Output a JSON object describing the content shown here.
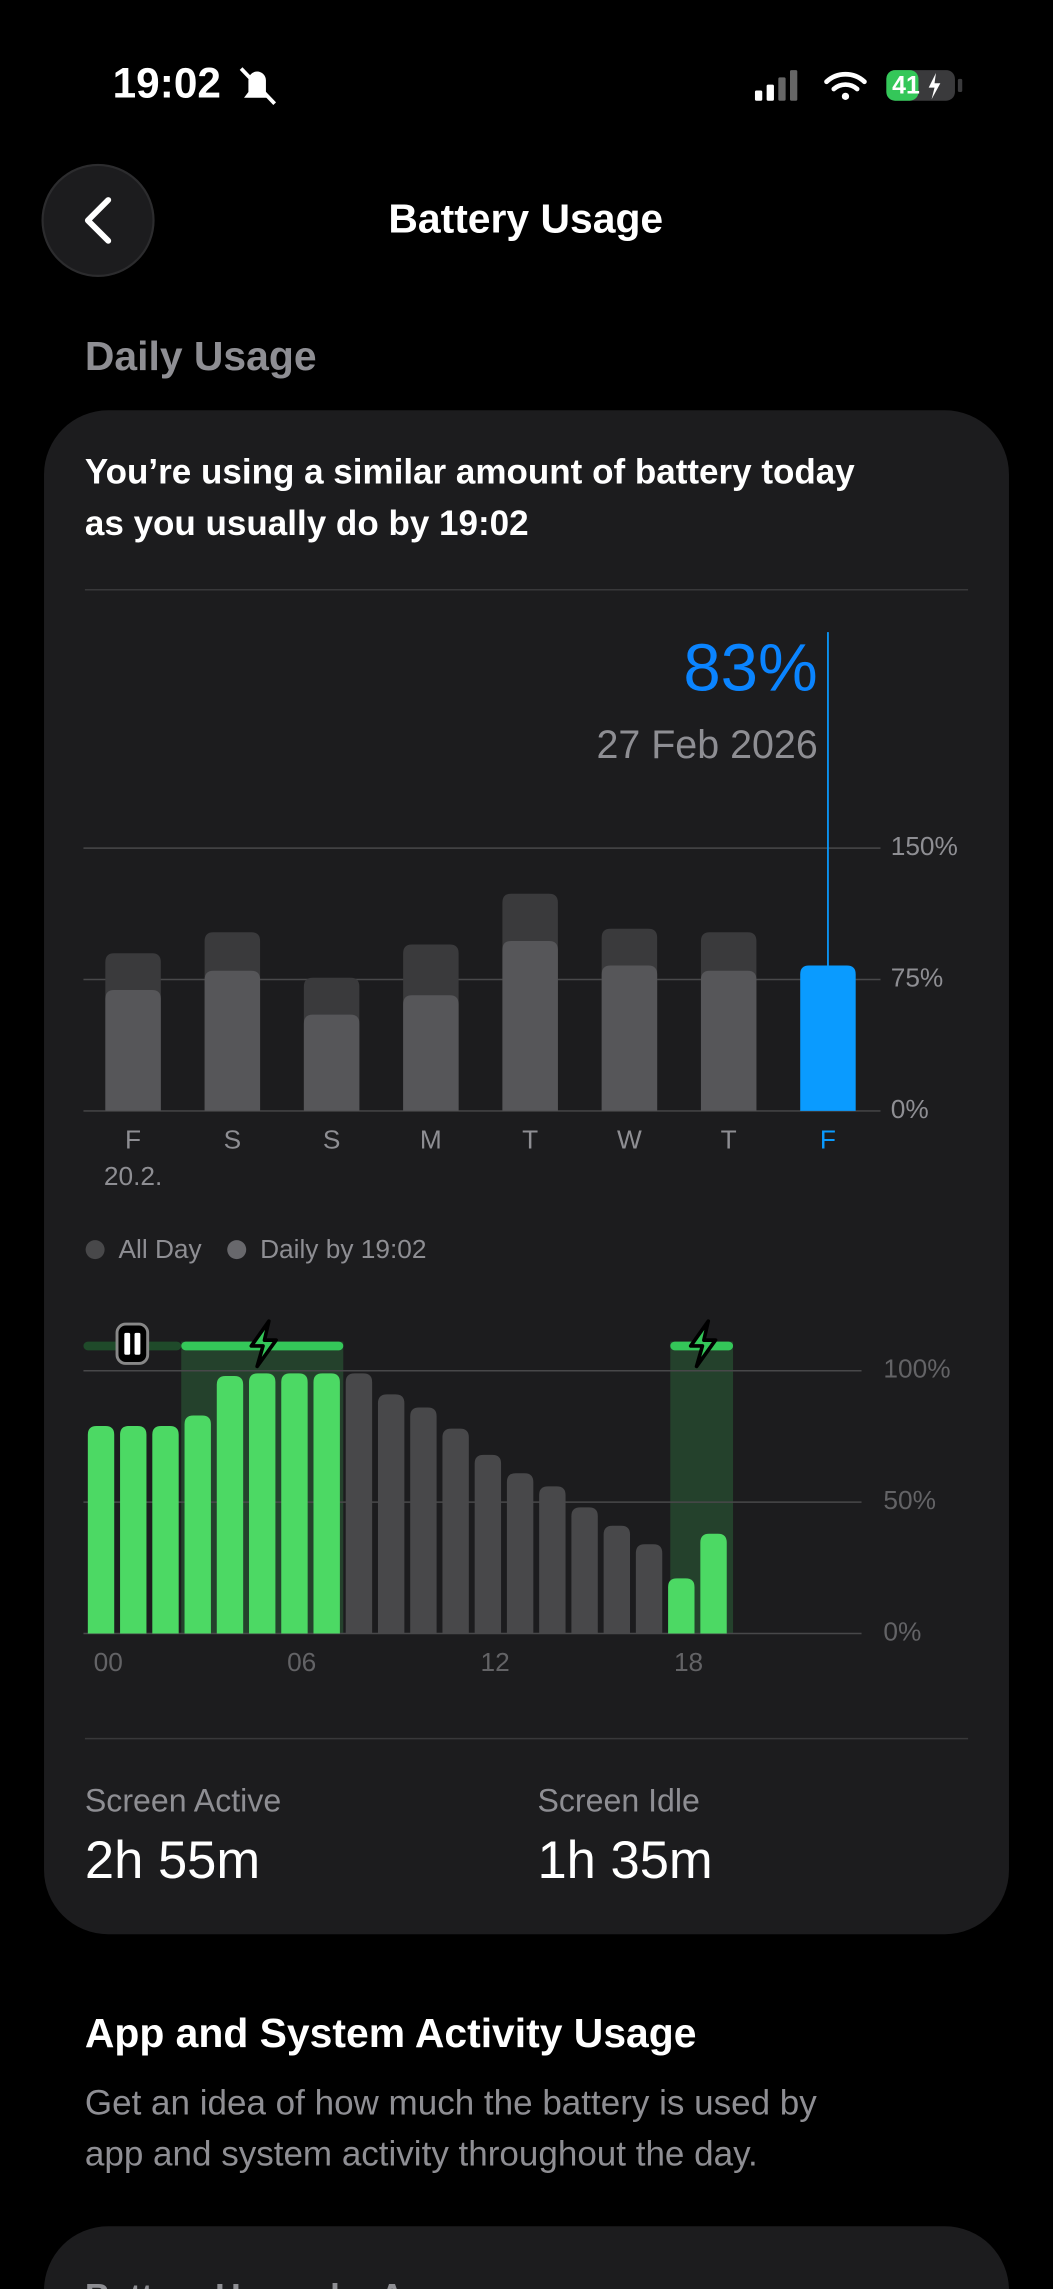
{
  "status_bar": {
    "time": "19:02",
    "battery": "41"
  },
  "header": {
    "title": "Battery Usage"
  },
  "section": {
    "title": "Daily Usage"
  },
  "card": {
    "message": [
      "You’re using a similar amount of battery today",
      "as you usually do by 19:02"
    ],
    "stats": [
      {
        "label": "Screen Active",
        "value": "2h 55m"
      },
      {
        "label": "Screen Idle",
        "value": "1h 35m"
      }
    ]
  },
  "activity": {
    "title": "App and System Activity Usage",
    "description": [
      "Get an idea of how much the battery is used by",
      "app and system activity throughout the day."
    ],
    "next_card_title": "Battery Usage by App"
  },
  "chart_data": [
    {
      "type": "bar",
      "categories": [
        "F",
        "S",
        "S",
        "M",
        "T",
        "W",
        "T",
        "F"
      ],
      "category_sublabels": [
        "20.2.",
        null,
        null,
        null,
        null,
        null,
        null,
        null
      ],
      "series": [
        {
          "name": "All Day",
          "color": "#3a3a3c",
          "values": [
            90,
            102,
            76,
            95,
            124,
            104,
            102,
            null
          ]
        },
        {
          "name": "Daily by 19:02",
          "color": "#565659",
          "values": [
            69,
            80,
            55,
            66,
            97,
            83,
            80,
            83
          ]
        }
      ],
      "highlight": {
        "index": 7,
        "color": "#0a9bff"
      },
      "callout": {
        "value_label": "83%",
        "date": "27 Feb 2026"
      },
      "ylim": [
        0,
        150
      ],
      "yticks": [
        {
          "value": 0,
          "label": "0%"
        },
        {
          "value": 75,
          "label": "75%"
        },
        {
          "value": 150,
          "label": "150%"
        }
      ],
      "grid": true
    },
    {
      "type": "bar",
      "x": [
        0,
        1,
        2,
        3,
        4,
        5,
        6,
        7,
        8,
        9,
        10,
        11,
        12,
        13,
        14,
        15,
        16,
        17,
        18,
        19
      ],
      "series": [
        {
          "color": "#4cd964",
          "values": [
            79,
            79,
            79,
            83,
            98,
            99,
            99,
            99,
            null,
            null,
            null,
            null,
            null,
            null,
            null,
            null,
            null,
            null,
            21,
            38
          ]
        },
        {
          "color": "#48484a",
          "values": [
            null,
            null,
            null,
            null,
            null,
            null,
            null,
            null,
            99,
            91,
            86,
            78,
            68,
            61,
            56,
            48,
            41,
            34,
            null,
            null
          ]
        }
      ],
      "xlim": [
        0,
        24
      ],
      "xticks": [
        {
          "value": 0,
          "label": "00"
        },
        {
          "value": 6,
          "label": "06"
        },
        12,
        18
      ],
      "ylim": [
        0,
        100
      ],
      "yticks": [
        {
          "value": 0,
          "label": "0%"
        },
        {
          "value": 50,
          "label": "50%"
        },
        {
          "value": 100,
          "label": "100%"
        }
      ],
      "grid": true
    }
  ]
}
